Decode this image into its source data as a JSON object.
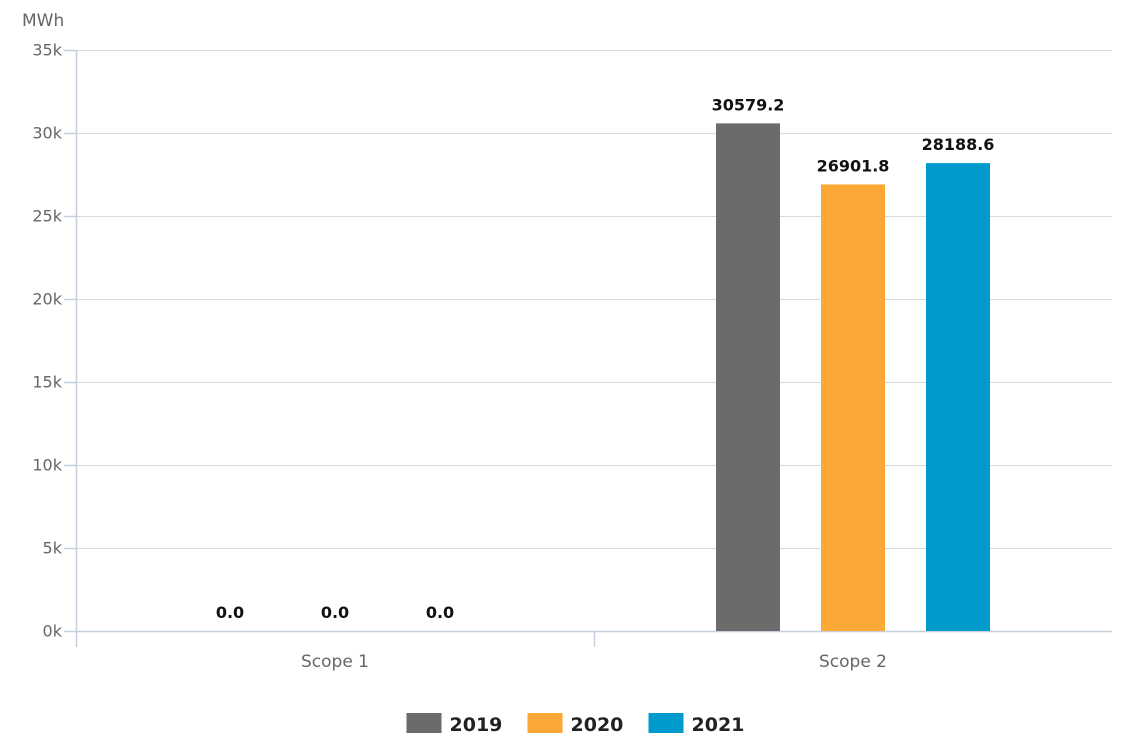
{
  "chart_data": {
    "type": "bar",
    "unit_label": "MWh",
    "categories": [
      "Scope 1",
      "Scope 2"
    ],
    "series": [
      {
        "name": "2019",
        "color": "#6b6b6b",
        "values": [
          0.0,
          30579.2
        ],
        "labels": [
          "0.0",
          "30579.2"
        ]
      },
      {
        "name": "2020",
        "color": "#fca837",
        "values": [
          0.0,
          26901.8
        ],
        "labels": [
          "0.0",
          "26901.8"
        ]
      },
      {
        "name": "2021",
        "color": "#009bcc",
        "values": [
          0.0,
          28188.6
        ],
        "labels": [
          "0.0",
          "28188.6"
        ]
      }
    ],
    "ylim": [
      0,
      35000
    ],
    "yticks": [
      {
        "value": 0,
        "label": "0k"
      },
      {
        "value": 5000,
        "label": "5k"
      },
      {
        "value": 10000,
        "label": "10k"
      },
      {
        "value": 15000,
        "label": "15k"
      },
      {
        "value": 20000,
        "label": "20k"
      },
      {
        "value": 25000,
        "label": "25k"
      },
      {
        "value": 30000,
        "label": "30k"
      },
      {
        "value": 35000,
        "label": "35k"
      }
    ],
    "grid": true,
    "legend": "bottom-center"
  }
}
